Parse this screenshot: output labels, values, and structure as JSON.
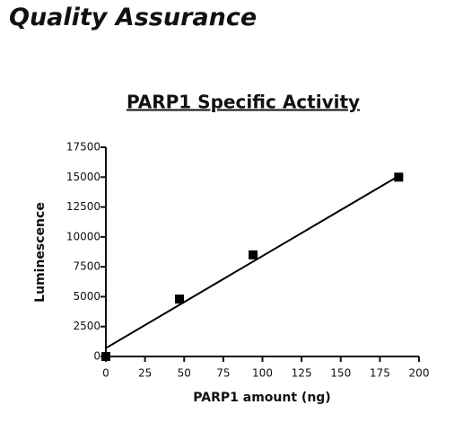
{
  "page_title": "Quality Assurance",
  "chart_data": {
    "type": "scatter",
    "title": "PARP1 Specific Activity",
    "x_label": "PARP1 amount (ng)",
    "y_label": "Luminescence",
    "x": [
      0,
      47,
      94,
      187
    ],
    "values": [
      0,
      4800,
      8500,
      15000
    ],
    "color": "#000000",
    "trend_line": {
      "x": [
        0,
        187
      ],
      "values": [
        700,
        15100
      ],
      "color": "#000000"
    },
    "xlim": [
      0,
      200
    ],
    "xticks": [
      0,
      25,
      50,
      75,
      100,
      125,
      150,
      175,
      200
    ],
    "ylim": [
      0,
      17500
    ],
    "yticks": [
      0,
      2500,
      5000,
      7500,
      10000,
      12500,
      15000,
      17500
    ],
    "grid": false
  }
}
